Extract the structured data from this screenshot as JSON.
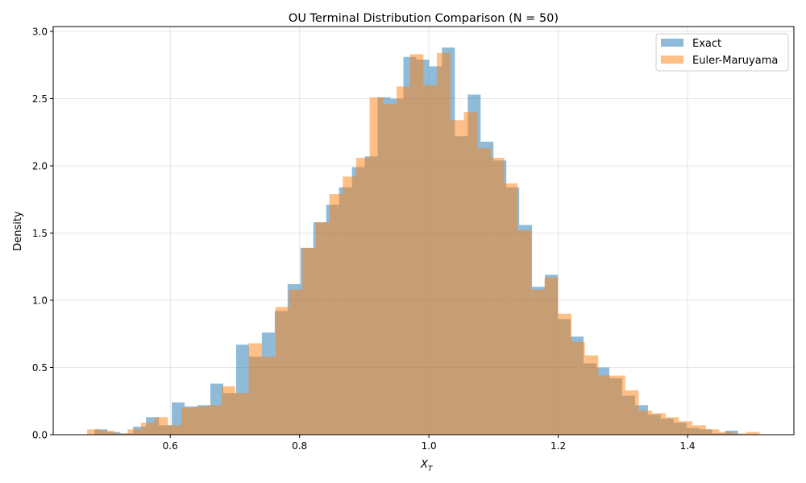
{
  "chart_data": {
    "type": "histogram",
    "title": "OU Terminal Distribution Comparison (N = 50)",
    "xlabel": "X",
    "xlabel_subscript": "T",
    "ylabel": "Density",
    "xlim": [
      0.419,
      1.5645
    ],
    "ylim": [
      0,
      3.036
    ],
    "xticks": [
      "0.6",
      "0.8",
      "1.0",
      "1.2",
      "1.4"
    ],
    "yticks": [
      "0.0",
      "0.5",
      "1.0",
      "1.5",
      "2.0",
      "2.5",
      "3.0"
    ],
    "grid": true,
    "legend_position": "top-right",
    "series": [
      {
        "name": "Exact",
        "color": "#1f77b4",
        "alpha": 0.5,
        "bin_start": 0.483,
        "bin_width": 0.0199,
        "values": [
          0.04,
          0.02,
          0.01,
          0.06,
          0.13,
          0.07,
          0.24,
          0.21,
          0.22,
          0.38,
          0.31,
          0.67,
          0.58,
          0.76,
          0.92,
          1.12,
          1.39,
          1.58,
          1.71,
          1.84,
          1.99,
          2.07,
          2.51,
          2.5,
          2.81,
          2.79,
          2.74,
          2.88,
          2.22,
          2.53,
          2.18,
          2.04,
          1.84,
          1.56,
          1.1,
          1.19,
          0.86,
          0.73,
          0.53,
          0.5,
          0.42,
          0.29,
          0.22,
          0.15,
          0.12,
          0.09,
          0.05,
          0.04,
          0.01,
          0.03
        ]
      },
      {
        "name": "Euler-Maruyama",
        "color": "#ff7f0e",
        "alpha": 0.5,
        "bin_start": 0.4716,
        "bin_width": 0.0208,
        "values": [
          0.04,
          0.03,
          0.01,
          0.04,
          0.09,
          0.13,
          0.07,
          0.2,
          0.21,
          0.22,
          0.36,
          0.31,
          0.68,
          0.58,
          0.95,
          1.08,
          1.39,
          1.58,
          1.79,
          1.92,
          2.06,
          2.51,
          2.46,
          2.59,
          2.83,
          2.6,
          2.84,
          2.34,
          2.4,
          2.13,
          2.06,
          1.87,
          1.52,
          1.08,
          1.17,
          0.9,
          0.69,
          0.59,
          0.44,
          0.44,
          0.33,
          0.18,
          0.16,
          0.13,
          0.1,
          0.07,
          0.04,
          0.02,
          0.01,
          0.02
        ]
      }
    ]
  }
}
